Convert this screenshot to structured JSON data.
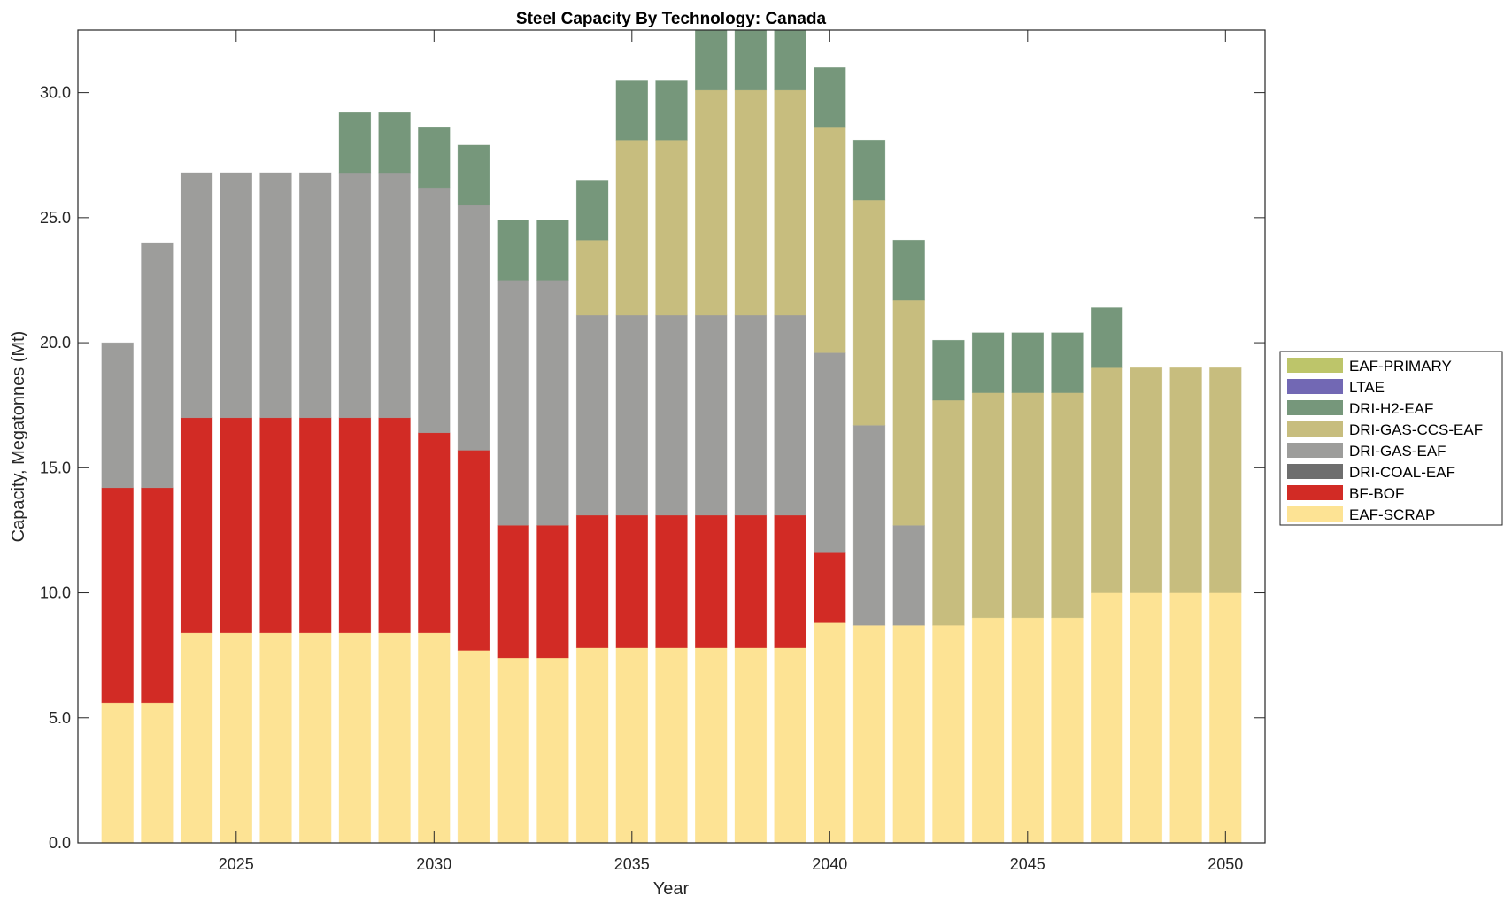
{
  "chart_data": {
    "type": "bar",
    "stacked": true,
    "title": "Steel Capacity By Technology: Canada",
    "xlabel": "Year",
    "ylabel": "Capacity, Megatonnes (Mt)",
    "xlim": [
      2021,
      2051
    ],
    "ylim": [
      0,
      32.5
    ],
    "xticks": [
      2025,
      2030,
      2035,
      2040,
      2045,
      2050
    ],
    "xtick_labels": [
      "2025",
      "2030",
      "2035",
      "2040",
      "2045",
      "2050"
    ],
    "yticks": [
      0,
      5,
      10,
      15,
      20,
      25,
      30
    ],
    "ytick_labels": [
      "0.0",
      "5.0",
      "10.0",
      "15.0",
      "20.0",
      "25.0",
      "30.0"
    ],
    "grid": false,
    "legend_position": "outside-right",
    "categories": [
      2022,
      2023,
      2024,
      2025,
      2026,
      2027,
      2028,
      2029,
      2030,
      2031,
      2032,
      2033,
      2034,
      2035,
      2036,
      2037,
      2038,
      2039,
      2040,
      2041,
      2042,
      2043,
      2044,
      2045,
      2046,
      2047,
      2048,
      2049,
      2050
    ],
    "series": [
      {
        "name": "EAF-SCRAP",
        "color": "#fde394",
        "values": [
          5.6,
          5.6,
          8.4,
          8.4,
          8.4,
          8.4,
          8.4,
          8.4,
          8.4,
          7.7,
          7.4,
          7.4,
          7.8,
          7.8,
          7.8,
          7.8,
          7.8,
          7.8,
          8.8,
          8.7,
          8.7,
          8.7,
          9.0,
          9.0,
          9.0,
          10.0,
          10.0,
          10.0,
          10.0
        ]
      },
      {
        "name": "BF-BOF",
        "color": "#d22b25",
        "values": [
          8.6,
          8.6,
          8.6,
          8.6,
          8.6,
          8.6,
          8.6,
          8.6,
          8.0,
          8.0,
          5.3,
          5.3,
          5.3,
          5.3,
          5.3,
          5.3,
          5.3,
          5.3,
          2.8,
          0,
          0,
          0,
          0,
          0,
          0,
          0,
          0,
          0,
          0
        ]
      },
      {
        "name": "DRI-COAL-EAF",
        "color": "#6e6e6e",
        "values": [
          0,
          0,
          0,
          0,
          0,
          0,
          0,
          0,
          0,
          0,
          0,
          0,
          0,
          0,
          0,
          0,
          0,
          0,
          0,
          0,
          0,
          0,
          0,
          0,
          0,
          0,
          0,
          0,
          0
        ]
      },
      {
        "name": "DRI-GAS-EAF",
        "color": "#9d9d9b",
        "values": [
          5.8,
          9.8,
          9.8,
          9.8,
          9.8,
          9.8,
          9.8,
          9.8,
          9.8,
          9.8,
          9.8,
          9.8,
          8.0,
          8.0,
          8.0,
          8.0,
          8.0,
          8.0,
          8.0,
          8.0,
          4.0,
          0,
          0,
          0,
          0,
          0,
          0,
          0,
          0
        ]
      },
      {
        "name": "DRI-GAS-CCS-EAF",
        "color": "#c7bd7e",
        "values": [
          0,
          0,
          0,
          0,
          0,
          0,
          0,
          0,
          0,
          0,
          0,
          0,
          3.0,
          7.0,
          7.0,
          9.0,
          9.0,
          9.0,
          9.0,
          9.0,
          9.0,
          9.0,
          9.0,
          9.0,
          9.0,
          9.0,
          9.0,
          9.0,
          9.0
        ]
      },
      {
        "name": "DRI-H2-EAF",
        "color": "#76977b",
        "values": [
          0,
          0,
          0,
          0,
          0,
          0,
          2.4,
          2.4,
          2.4,
          2.4,
          2.4,
          2.4,
          2.4,
          2.4,
          2.4,
          2.4,
          2.4,
          2.4,
          2.4,
          2.4,
          2.4,
          2.4,
          2.4,
          2.4,
          2.4,
          2.4,
          0,
          0,
          0
        ]
      },
      {
        "name": "LTAE",
        "color": "#7268b4",
        "values": [
          0,
          0,
          0,
          0,
          0,
          0,
          0,
          0,
          0,
          0,
          0,
          0,
          0,
          0,
          0,
          0,
          0,
          0,
          0,
          0,
          0,
          0,
          0,
          0,
          0,
          0,
          0,
          0,
          0
        ]
      },
      {
        "name": "EAF-PRIMARY",
        "color": "#bdc56a",
        "values": [
          0,
          0,
          0,
          0,
          0,
          0,
          0,
          0,
          0,
          0,
          0,
          0,
          0,
          0,
          0,
          0,
          0,
          0,
          0,
          0,
          0,
          0,
          0,
          0,
          0,
          0,
          0,
          0,
          0
        ]
      }
    ],
    "legend_order": [
      "EAF-PRIMARY",
      "LTAE",
      "DRI-H2-EAF",
      "DRI-GAS-CCS-EAF",
      "DRI-GAS-EAF",
      "DRI-COAL-EAF",
      "BF-BOF",
      "EAF-SCRAP"
    ]
  }
}
